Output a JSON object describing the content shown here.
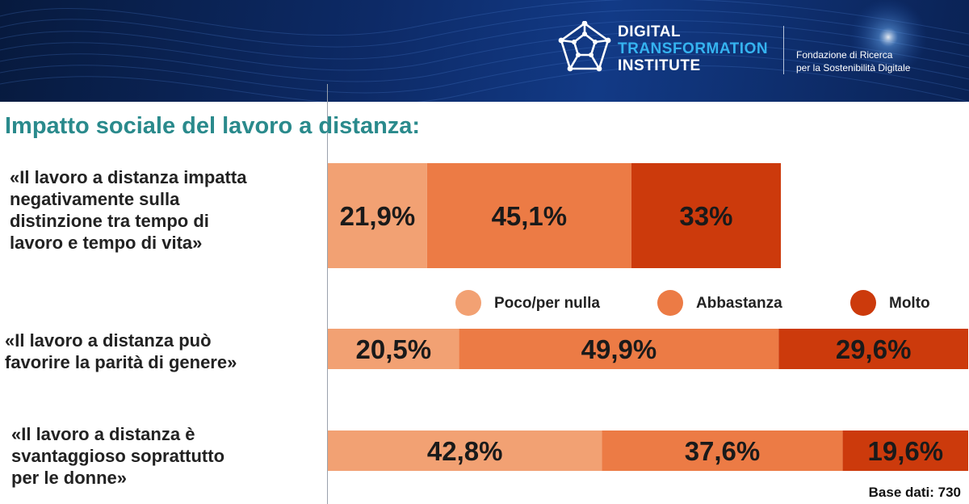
{
  "header": {
    "brand_line1": "DIGITAL",
    "brand_line2": "TRANSFORMATION",
    "brand_line3": "INSTITUTE",
    "sub_line1": "Fondazione di Ricerca",
    "sub_line2": "per la Sostenibilità Digitale",
    "logo_icon": "dodecahedron-network-icon"
  },
  "title": "Impatto sociale del lavoro a distanza:",
  "base_note": "Base dati: 730",
  "colors": {
    "banner": "#0d2a66",
    "brand_accent": "#35b3f0",
    "title": "#2a8a8c",
    "poco": "#f2a173",
    "abbastanza": "#ec7b45",
    "molto": "#cc3a0c"
  },
  "chart_data": {
    "type": "bar",
    "orientation": "horizontal",
    "stacked": true,
    "categories": [
      "«Il lavoro a distanza impatta negativamente sulla distinzione tra tempo di lavoro e tempo di vita»",
      "«Il lavoro a distanza può favorire la parità di genere»",
      "«Il lavoro a distanza è svantaggioso soprattutto per le donne»"
    ],
    "category_lines": [
      [
        "«Il lavoro a distanza impatta",
        "negativamente sulla",
        "distinzione tra tempo di",
        "lavoro e tempo di vita»"
      ],
      [
        "«Il lavoro a distanza può",
        "favorire la parità di genere»"
      ],
      [
        "«Il lavoro a distanza è",
        "svantaggioso soprattutto",
        "per le donne»"
      ]
    ],
    "series": [
      {
        "name": "Poco/per nulla",
        "color": "#f2a173",
        "values": [
          21.9,
          20.5,
          42.8
        ],
        "labels": [
          "21,9%",
          "20,5%",
          "42,8%"
        ]
      },
      {
        "name": "Abbastanza",
        "color": "#ec7b45",
        "values": [
          45.1,
          49.9,
          37.6
        ],
        "labels": [
          "45,1%",
          "49,9%",
          "37,6%"
        ]
      },
      {
        "name": "Molto",
        "color": "#cc3a0c",
        "values": [
          33,
          29.6,
          19.6
        ],
        "labels": [
          "33%",
          "29,6%",
          "19,6%"
        ]
      }
    ],
    "unit": "%",
    "legend_position": "between rows",
    "xlim": [
      0,
      100
    ],
    "grid": false
  }
}
